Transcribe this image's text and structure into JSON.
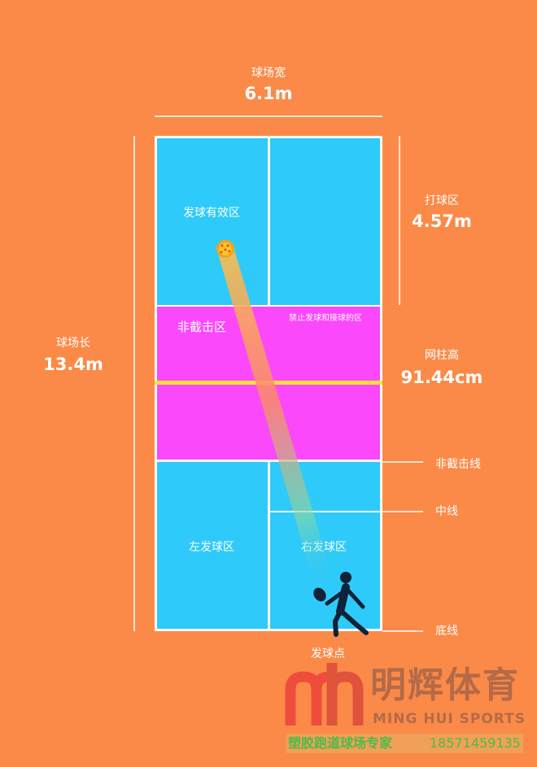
{
  "colors": {
    "background": "#fb8a48",
    "service_area": "#2ecaf9",
    "kitchen": "#fb48fb",
    "net": "#f4e23c",
    "lines": "#ffffff",
    "logo_red": "#ef4d3c",
    "logo_text": "#b46a48",
    "banner_text": "#4dbb48"
  },
  "dimensions": {
    "width": {
      "label": "球场宽",
      "value": "6.1m"
    },
    "length": {
      "label": "球场长",
      "value": "13.4m"
    },
    "play_zone": {
      "label": "打球区",
      "value": "4.57m"
    },
    "net_post": {
      "label": "网柱高",
      "value": "91.44cm"
    }
  },
  "zones": {
    "service_valid": "发球有效区",
    "non_volley": "非截击区",
    "no_serve_note": "禁止发球和接球的区",
    "left_service": "左发球区",
    "right_service": "右发球区",
    "serve_point": "发球点"
  },
  "line_labels": {
    "non_volley_line": "非截击线",
    "center_line": "中线",
    "baseline": "底线"
  },
  "icons": {
    "ball": "pickleball-icon",
    "player": "player-with-paddle-icon",
    "wechat": "wechat-icon"
  },
  "brand": {
    "logo_mark": "mh",
    "name_cn": "明辉体育",
    "name_en": "MING HUI SPORTS",
    "tagline": "塑胶跑道球场专家",
    "phone": "18571459135"
  }
}
